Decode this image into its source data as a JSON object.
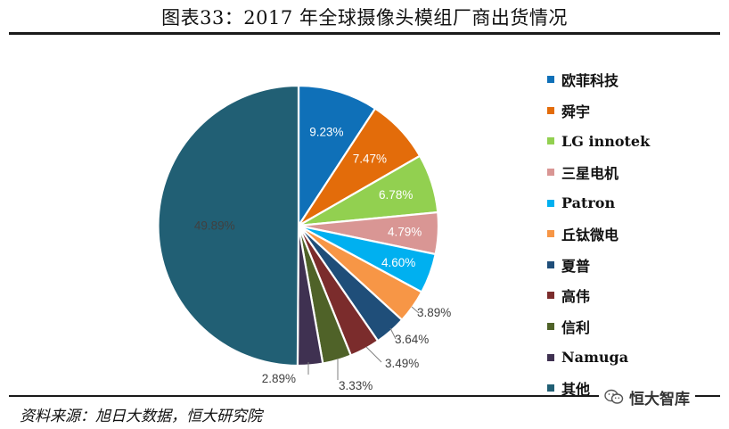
{
  "header": {
    "title": "图表33：2017 年全球摄像头模组厂商出货情况"
  },
  "footer": {
    "source": "资料来源：旭日大数据，恒大研究院",
    "watermark": "恒大智库"
  },
  "chart_data": {
    "type": "pie",
    "title": "图表33：2017 年全球摄像头模组厂商出货情况",
    "legend_position": "right",
    "series": [
      {
        "name": "欧菲科技",
        "value": 9.23,
        "label": "9.23%",
        "color": "#0f70b8"
      },
      {
        "name": "舜宇",
        "value": 7.47,
        "label": "7.47%",
        "color": "#e36c0a"
      },
      {
        "name": "LG innotek",
        "value": 6.78,
        "label": "6.78%",
        "color": "#92d050"
      },
      {
        "name": "三星电机",
        "value": 4.79,
        "label": "4.79%",
        "color": "#d99694"
      },
      {
        "name": "Patron",
        "value": 4.6,
        "label": "4.60%",
        "color": "#00b0f0"
      },
      {
        "name": "丘钛微电",
        "value": 3.89,
        "label": "3.89%",
        "color": "#f79646"
      },
      {
        "name": "夏普",
        "value": 3.64,
        "label": "3.64%",
        "color": "#1f4e79"
      },
      {
        "name": "高伟",
        "value": 3.49,
        "label": "3.49%",
        "color": "#7b2c2c"
      },
      {
        "name": "信利",
        "value": 3.33,
        "label": "3.33%",
        "color": "#4f6228"
      },
      {
        "name": "Namuga",
        "value": 2.89,
        "label": "2.89%",
        "color": "#3f3151"
      },
      {
        "name": "其他",
        "value": 49.89,
        "label": "49.89%",
        "color": "#215f74"
      }
    ]
  }
}
